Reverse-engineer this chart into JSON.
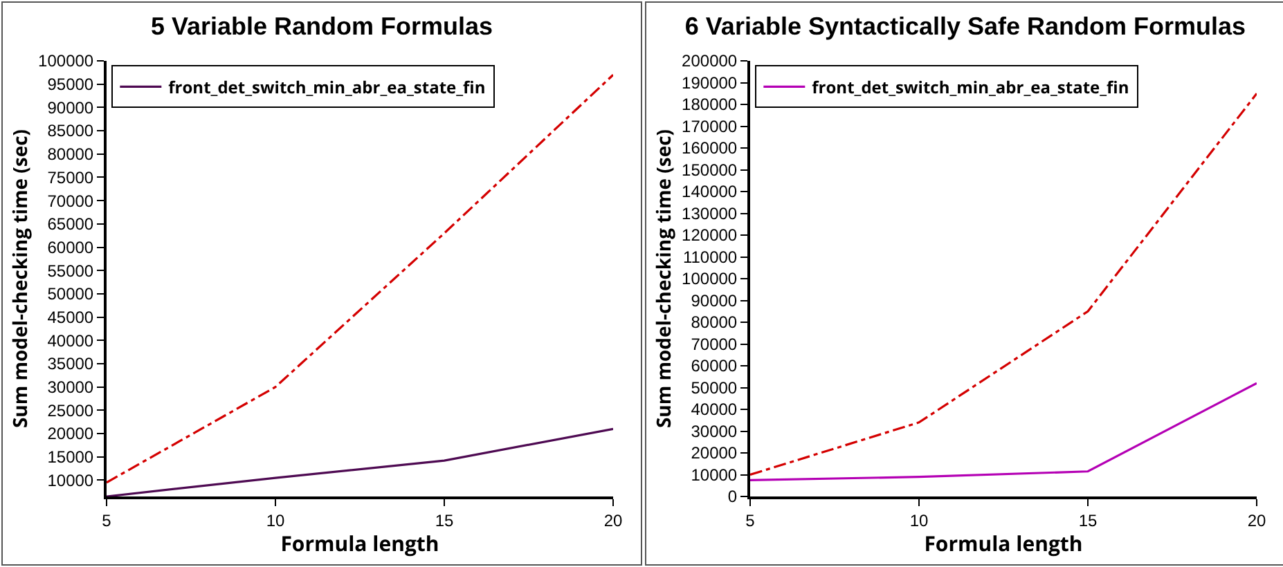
{
  "chart_data": [
    {
      "type": "line",
      "title": "5 Variable Random Formulas",
      "xlabel": "Formula length",
      "ylabel": "Sum model-checking time (sec)",
      "x": [
        5,
        10,
        15,
        20
      ],
      "xlim": [
        5,
        20
      ],
      "xticks": [
        5,
        10,
        15,
        20
      ],
      "ylim": [
        6500,
        100000
      ],
      "yticks": [
        10000,
        15000,
        20000,
        25000,
        30000,
        35000,
        40000,
        45000,
        50000,
        55000,
        60000,
        65000,
        70000,
        75000,
        80000,
        85000,
        90000,
        95000,
        100000
      ],
      "grid": false,
      "legend": "top left",
      "marker": "none",
      "series": [
        {
          "color": "#d40000",
          "line_style": "dashed",
          "values": [
            9500,
            30000,
            63000,
            97000
          ]
        },
        {
          "name": "front_det_switch_min_abr_ea_state_fin",
          "color": "#4e0a52",
          "line_style": "solid",
          "values": [
            6500,
            10500,
            14200,
            21000
          ]
        }
      ]
    },
    {
      "type": "line",
      "title": "6 Variable Syntactically Safe Random Formulas",
      "xlabel": "Formula length",
      "ylabel": "Sum model-checking time (sec)",
      "x": [
        5,
        10,
        15,
        20
      ],
      "xlim": [
        5,
        20
      ],
      "xticks": [
        5,
        10,
        15,
        20
      ],
      "ylim": [
        0,
        200000
      ],
      "yticks": [
        0,
        10000,
        20000,
        30000,
        40000,
        50000,
        60000,
        70000,
        80000,
        90000,
        100000,
        110000,
        120000,
        130000,
        140000,
        150000,
        160000,
        170000,
        180000,
        190000,
        200000
      ],
      "grid": false,
      "legend": "top left",
      "marker": "none",
      "series": [
        {
          "color": "#d40000",
          "line_style": "dashed",
          "values": [
            10000,
            34000,
            85000,
            185000
          ]
        },
        {
          "name": "front_det_switch_min_abr_ea_state_fin",
          "color": "#b400b4",
          "line_style": "solid",
          "values": [
            7500,
            9000,
            11500,
            52000
          ]
        }
      ]
    }
  ]
}
